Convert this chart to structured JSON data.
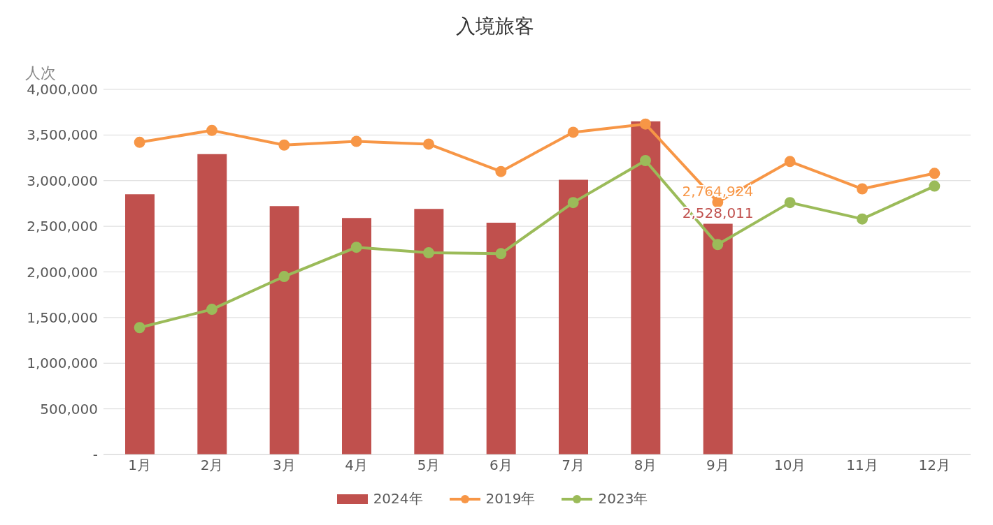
{
  "chart_data": {
    "type": "bar",
    "title": "入境旅客",
    "ylabel": "人次",
    "categories": [
      "1月",
      "2月",
      "3月",
      "4月",
      "5月",
      "6月",
      "7月",
      "8月",
      "9月",
      "10月",
      "11月",
      "12月"
    ],
    "series": [
      {
        "name": "2024年",
        "color": "#c0504d",
        "values": [
          2850000,
          3290000,
          2720000,
          2590000,
          2690000,
          2540000,
          3010000,
          3650000,
          2528011,
          null,
          null,
          null
        ],
        "value_labels": [
          null,
          null,
          null,
          null,
          null,
          null,
          null,
          null,
          "2,528,011",
          null,
          null,
          null
        ]
      },
      {
        "name": "2019年",
        "type": "line",
        "color": "#f79646",
        "values": [
          3420000,
          3550000,
          3390000,
          3430000,
          3400000,
          3100000,
          3530000,
          3620000,
          2764924,
          3210000,
          2910000,
          3080000
        ],
        "value_labels": [
          null,
          null,
          null,
          null,
          null,
          null,
          null,
          null,
          "2,764,924",
          null,
          null,
          null
        ]
      },
      {
        "name": "2023年",
        "type": "line",
        "color": "#9bbb59",
        "values": [
          1390000,
          1590000,
          1950000,
          2270000,
          2210000,
          2200000,
          2760000,
          3220000,
          2300000,
          2760000,
          2580000,
          2940000
        ]
      }
    ],
    "ylim": [
      0,
      4000000
    ],
    "yticks": [
      {
        "value": 0,
        "label": "-"
      },
      {
        "value": 500000,
        "label": "500,000"
      },
      {
        "value": 1000000,
        "label": "1,000,000"
      },
      {
        "value": 1500000,
        "label": "1,500,000"
      },
      {
        "value": 2000000,
        "label": "2,000,000"
      },
      {
        "value": 2500000,
        "label": "2,500,000"
      },
      {
        "value": 3000000,
        "label": "3,000,000"
      },
      {
        "value": 3500000,
        "label": "3,500,000"
      },
      {
        "value": 4000000,
        "label": "4,000,000"
      }
    ],
    "grid": "y",
    "legend": "bottom",
    "marker": "circle",
    "line_style": "solid"
  }
}
